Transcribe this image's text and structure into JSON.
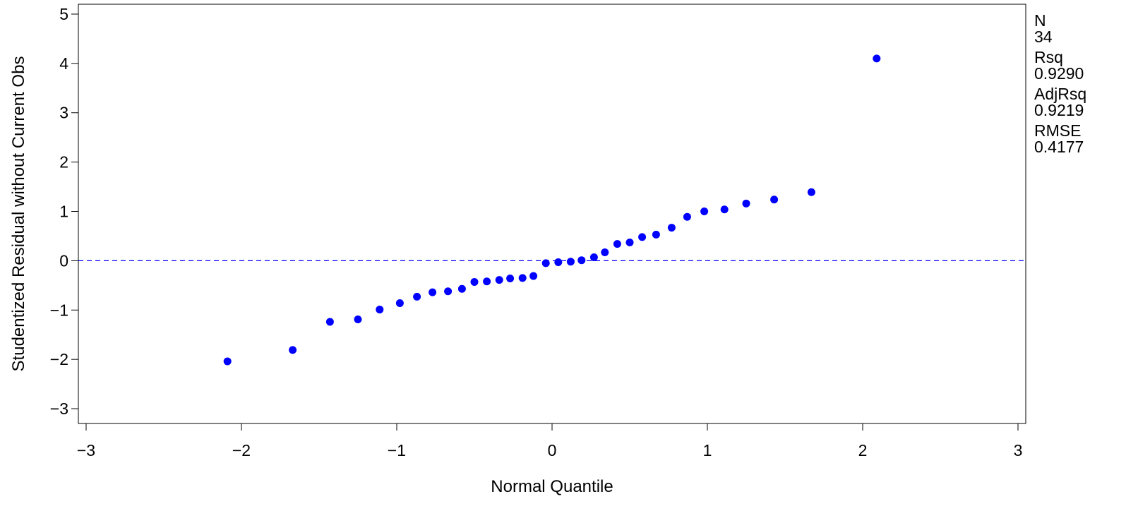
{
  "chart_data": {
    "type": "scatter",
    "title": "",
    "xlabel": "Normal Quantile",
    "ylabel": "Studentized Residual without Current Obs",
    "xlim": [
      -3.05,
      3.05
    ],
    "ylim": [
      -3.3,
      5.2
    ],
    "x_ticks": [
      -3,
      -2,
      -1,
      0,
      1,
      2,
      3
    ],
    "y_ticks": [
      -3,
      -2,
      -1,
      0,
      1,
      2,
      3,
      4,
      5
    ],
    "grid": false,
    "reference_line": {
      "y": 0,
      "style": "dashed",
      "color": "#0000ff"
    },
    "marker_color": "#0000ff",
    "x": [
      -2.09,
      -1.67,
      -1.43,
      -1.25,
      -1.11,
      -0.98,
      -0.87,
      -0.77,
      -0.67,
      -0.58,
      -0.5,
      -0.42,
      -0.34,
      -0.27,
      -0.19,
      -0.12,
      -0.04,
      0.04,
      0.12,
      0.19,
      0.27,
      0.34,
      0.42,
      0.5,
      0.58,
      0.67,
      0.77,
      0.87,
      0.98,
      1.11,
      1.25,
      1.43,
      1.67,
      2.09
    ],
    "y": [
      -2.04,
      -1.81,
      -1.24,
      -1.19,
      -0.99,
      -0.86,
      -0.73,
      -0.64,
      -0.62,
      -0.57,
      -0.43,
      -0.42,
      -0.39,
      -0.36,
      -0.35,
      -0.31,
      -0.05,
      -0.03,
      -0.02,
      0.01,
      0.07,
      0.17,
      0.34,
      0.37,
      0.48,
      0.53,
      0.67,
      0.89,
      1.0,
      1.04,
      1.16,
      1.24,
      1.39,
      4.1
    ]
  },
  "fit_stats": [
    {
      "label": "N",
      "value": "34"
    },
    {
      "label": "Rsq",
      "value": "0.9290"
    },
    {
      "label": "AdjRsq",
      "value": "0.9219"
    },
    {
      "label": "RMSE",
      "value": "0.4177"
    }
  ]
}
